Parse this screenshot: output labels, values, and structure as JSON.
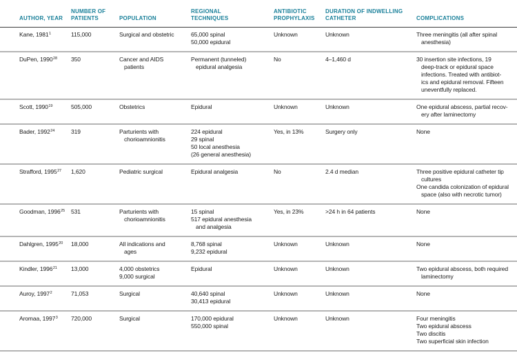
{
  "colors": {
    "header_text": "#187f99",
    "body_text": "#1a1a1a",
    "row_divider": "#b4b4b4",
    "header_divider": "#3c3c3c"
  },
  "table": {
    "columns": [
      {
        "id": "author",
        "label": "AUTHOR, YEAR"
      },
      {
        "id": "patients",
        "label": "NUMBER OF\nPATIENTS"
      },
      {
        "id": "population",
        "label": "POPULATION"
      },
      {
        "id": "regional",
        "label": "REGIONAL\nTECHNIQUES"
      },
      {
        "id": "antibiotic",
        "label": "ANTIBIOTIC\nPROPHYLAXIS"
      },
      {
        "id": "duration",
        "label": "DURATION OF INDWELLING\nCATHETER"
      },
      {
        "id": "complications",
        "label": "COMPLICATIONS"
      }
    ],
    "rows": [
      {
        "author": {
          "text": "Kane, 1981",
          "sup": "1"
        },
        "patients": [
          {
            "t": "115,000"
          }
        ],
        "population": [
          {
            "t": "Surgical and obstetric"
          }
        ],
        "regional": [
          {
            "t": "65,000 spinal"
          },
          {
            "t": "50,000 epidural"
          }
        ],
        "antibiotic": [
          {
            "t": "Unknown"
          }
        ],
        "duration": [
          {
            "t": "Unknown"
          }
        ],
        "complications": [
          {
            "t": "Three meningitis (all after spinal"
          },
          {
            "t": "anesthesia)",
            "c": true
          }
        ]
      },
      {
        "author": {
          "text": "DuPen, 1990",
          "sup": "28"
        },
        "patients": [
          {
            "t": "350"
          }
        ],
        "population": [
          {
            "t": "Cancer and AIDS"
          },
          {
            "t": "patients",
            "c": true
          }
        ],
        "regional": [
          {
            "t": "Permanent (tunneled)"
          },
          {
            "t": "epidural analgesia",
            "c": true
          }
        ],
        "antibiotic": [
          {
            "t": "No"
          }
        ],
        "duration": [
          {
            "t": "4–1,460 d"
          }
        ],
        "complications": [
          {
            "t": "30 insertion site infections, 19"
          },
          {
            "t": "deep-track or epidural space",
            "c": true
          },
          {
            "t": "infections. Treated with antibiot-",
            "c": true
          },
          {
            "t": "ics and epidural removal. Fifteen",
            "c": true
          },
          {
            "t": "uneventfully replaced.",
            "c": true
          }
        ]
      },
      {
        "author": {
          "text": "Scott, 1990",
          "sup": "19"
        },
        "patients": [
          {
            "t": "505,000"
          }
        ],
        "population": [
          {
            "t": "Obstetrics"
          }
        ],
        "regional": [
          {
            "t": "Epidural"
          }
        ],
        "antibiotic": [
          {
            "t": "Unknown"
          }
        ],
        "duration": [
          {
            "t": "Unknown"
          }
        ],
        "complications": [
          {
            "t": "One epidural abscess, partial recov-"
          },
          {
            "t": "ery after laminectomy",
            "c": true
          }
        ]
      },
      {
        "author": {
          "text": "Bader, 1992",
          "sup": "24"
        },
        "patients": [
          {
            "t": "319"
          }
        ],
        "population": [
          {
            "t": "Parturients with"
          },
          {
            "t": "chorioamnionitis",
            "c": true
          }
        ],
        "regional": [
          {
            "t": "224 epidural"
          },
          {
            "t": "29 spinal"
          },
          {
            "t": "50 local anesthesia"
          },
          {
            "t": "(26 general anesthesia)"
          }
        ],
        "antibiotic": [
          {
            "t": "Yes, in 13%"
          }
        ],
        "duration": [
          {
            "t": "Surgery only"
          }
        ],
        "complications": [
          {
            "t": "None"
          }
        ]
      },
      {
        "author": {
          "text": "Strafford, 1995",
          "sup": "27"
        },
        "patients": [
          {
            "t": "1,620"
          }
        ],
        "population": [
          {
            "t": "Pediatric surgical"
          }
        ],
        "regional": [
          {
            "t": "Epidural analgesia"
          }
        ],
        "antibiotic": [
          {
            "t": "No"
          }
        ],
        "duration": [
          {
            "t": "2.4 d median"
          }
        ],
        "complications": [
          {
            "t": "Three positive epidural catheter tip"
          },
          {
            "t": "cultures",
            "c": true
          },
          {
            "t": "One candida colonization of epidural"
          },
          {
            "t": "space (also with necrotic tumor)",
            "c": true
          }
        ]
      },
      {
        "author": {
          "text": "Goodman, 1996",
          "sup": "25"
        },
        "patients": [
          {
            "t": "531"
          }
        ],
        "population": [
          {
            "t": "Parturients with"
          },
          {
            "t": "chorioamnionitis",
            "c": true
          }
        ],
        "regional": [
          {
            "t": "15 spinal"
          },
          {
            "t": "517 epidural anesthesia"
          },
          {
            "t": "and analgesia",
            "c": true
          }
        ],
        "antibiotic": [
          {
            "t": "Yes, in 23%"
          }
        ],
        "duration": [
          {
            "t": ">24 h in 64 patients"
          }
        ],
        "complications": [
          {
            "t": "None"
          }
        ]
      },
      {
        "author": {
          "text": "Dahlgren, 1995",
          "sup": "20"
        },
        "patients": [
          {
            "t": "18,000"
          }
        ],
        "population": [
          {
            "t": "All indications and"
          },
          {
            "t": "ages",
            "c": true
          }
        ],
        "regional": [
          {
            "t": "8,768 spinal"
          },
          {
            "t": "9,232 epidural"
          }
        ],
        "antibiotic": [
          {
            "t": "Unknown"
          }
        ],
        "duration": [
          {
            "t": "Unknown"
          }
        ],
        "complications": [
          {
            "t": "None"
          }
        ]
      },
      {
        "author": {
          "text": "Kindler, 1996",
          "sup": "21"
        },
        "patients": [
          {
            "t": "13,000"
          }
        ],
        "population": [
          {
            "t": "4,000 obstetrics"
          },
          {
            "t": "9,000 surgical"
          }
        ],
        "regional": [
          {
            "t": "Epidural"
          }
        ],
        "antibiotic": [
          {
            "t": "Unknown"
          }
        ],
        "duration": [
          {
            "t": "Unknown"
          }
        ],
        "complications": [
          {
            "t": "Two epidural abscess, both required"
          },
          {
            "t": "laminectomy",
            "c": true
          }
        ]
      },
      {
        "author": {
          "text": "Auroy, 1997",
          "sup": "2"
        },
        "patients": [
          {
            "t": "71,053"
          }
        ],
        "population": [
          {
            "t": "Surgical"
          }
        ],
        "regional": [
          {
            "t": "40,640 spinal"
          },
          {
            "t": "30,413 epidural"
          }
        ],
        "antibiotic": [
          {
            "t": "Unknown"
          }
        ],
        "duration": [
          {
            "t": "Unknown"
          }
        ],
        "complications": [
          {
            "t": "None"
          }
        ]
      },
      {
        "author": {
          "text": "Aromaa, 1997",
          "sup": "3"
        },
        "patients": [
          {
            "t": "720,000"
          }
        ],
        "population": [
          {
            "t": "Surgical"
          }
        ],
        "regional": [
          {
            "t": "170,000 epidural"
          },
          {
            "t": "550,000 spinal"
          }
        ],
        "antibiotic": [
          {
            "t": "Unknown"
          }
        ],
        "duration": [
          {
            "t": "Unknown"
          }
        ],
        "complications": [
          {
            "t": "Four meningitis"
          },
          {
            "t": "Two epidural abscess"
          },
          {
            "t": "Two discitis"
          },
          {
            "t": "Two superficial skin infection"
          }
        ]
      }
    ]
  }
}
